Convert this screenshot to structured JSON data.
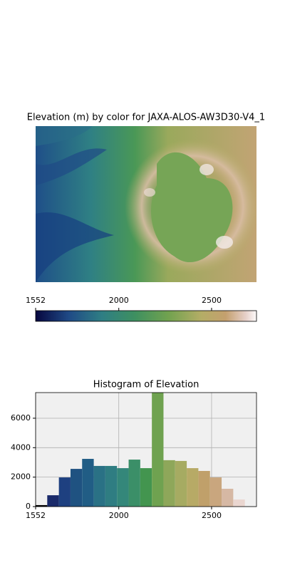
{
  "chart_data": [
    {
      "type": "image",
      "title": "Elevation (m) by color for JAXA-ALOS-AW3D30-V4_1",
      "colorbar": {
        "xlim": [
          1552,
          2742
        ],
        "xticks": [
          1552,
          2000,
          2500
        ]
      }
    },
    {
      "type": "histogram",
      "title": "Histogram of Elevation",
      "bins": [
        1552,
        1614.6,
        1677.3,
        1739.9,
        1802.5,
        1865.2,
        1927.8,
        1990.4,
        2053.1,
        2115.7,
        2178.3,
        2240.9,
        2303.6,
        2366.2,
        2428.8,
        2491.5,
        2554.1,
        2616.7,
        2679.4,
        2742
      ],
      "values": [
        100,
        770,
        1980,
        2560,
        3240,
        2760,
        2760,
        2610,
        3190,
        2610,
        7740,
        3150,
        3100,
        2610,
        2420,
        1980,
        1210,
        480,
        0
      ],
      "colors": [
        "#000000",
        "#1a2a6a",
        "#1e4080",
        "#1f5281",
        "#215d85",
        "#2a7185",
        "#2f7d82",
        "#34877a",
        "#3b8f68",
        "#43954f",
        "#6fa250",
        "#8ea75a",
        "#a6ab62",
        "#b7aa66",
        "#c0a06a",
        "#c9a67e",
        "#d6b8a4",
        "#ead6d0",
        "#f8f0f0"
      ],
      "xlim": [
        1552,
        2742
      ],
      "xticks": [
        1552,
        2000,
        2500
      ],
      "ylim": [
        0,
        7740
      ],
      "yticks": [
        0,
        2000,
        4000,
        6000
      ],
      "grid": true
    }
  ]
}
